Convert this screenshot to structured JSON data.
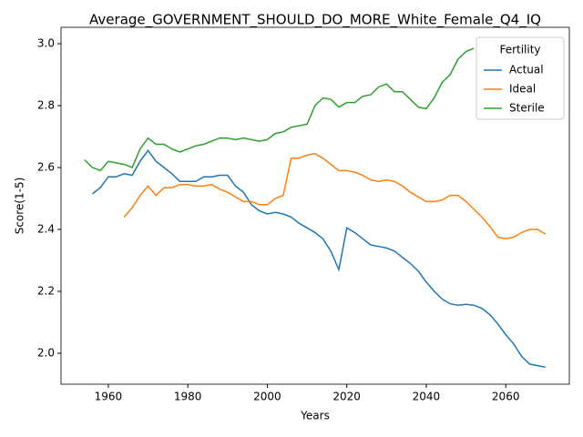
{
  "chart_data": {
    "type": "line",
    "title": "Average_GOVERNMENT_SHOULD_DO_MORE_White_Female_Q4_IQ",
    "xlabel": "Years",
    "ylabel": "Score(1-5)",
    "legend_title": "Fertility",
    "legend": "upper right",
    "x": [
      1954,
      1956,
      1958,
      1960,
      1962,
      1964,
      1966,
      1968,
      1970,
      1972,
      1974,
      1976,
      1978,
      1980,
      1982,
      1984,
      1986,
      1988,
      1990,
      1992,
      1994,
      1996,
      1998,
      2000,
      2002,
      2004,
      2006,
      2008,
      2010,
      2012,
      2014,
      2016,
      2018,
      2020,
      2022,
      2024,
      2026,
      2028,
      2030,
      2032,
      2034,
      2036,
      2038,
      2040,
      2042,
      2044,
      2046,
      2048,
      2050,
      2052,
      2054,
      2056,
      2058,
      2060,
      2062,
      2064,
      2066,
      2068,
      2070
    ],
    "series": [
      {
        "name": "Actual",
        "color": "#1f77b4",
        "values": [
          null,
          2.515,
          2.535,
          2.57,
          2.57,
          2.58,
          2.575,
          2.62,
          2.655,
          2.62,
          2.6,
          2.58,
          2.555,
          2.555,
          2.555,
          2.57,
          2.57,
          2.575,
          2.575,
          2.54,
          2.52,
          2.48,
          2.46,
          2.45,
          2.455,
          2.45,
          2.44,
          2.42,
          2.405,
          2.39,
          2.37,
          2.33,
          2.27,
          2.405,
          2.39,
          2.37,
          2.35,
          2.345,
          2.34,
          2.33,
          2.31,
          2.29,
          2.265,
          2.23,
          2.2,
          2.175,
          2.16,
          2.155,
          2.158,
          2.155,
          2.145,
          2.125,
          2.095,
          2.06,
          2.03,
          1.99,
          1.965,
          1.96,
          1.955
        ]
      },
      {
        "name": "Ideal",
        "color": "#ff7f0e",
        "values": [
          null,
          null,
          null,
          null,
          null,
          2.44,
          2.47,
          2.51,
          2.54,
          2.51,
          2.535,
          2.535,
          2.545,
          2.545,
          2.54,
          2.54,
          2.545,
          2.53,
          2.52,
          2.505,
          2.49,
          2.49,
          2.48,
          2.48,
          2.5,
          2.51,
          2.63,
          2.63,
          2.64,
          2.645,
          2.63,
          2.61,
          2.59,
          2.59,
          2.585,
          2.575,
          2.56,
          2.555,
          2.56,
          2.555,
          2.54,
          2.52,
          2.505,
          2.49,
          2.49,
          2.495,
          2.51,
          2.51,
          2.49,
          2.465,
          2.44,
          2.41,
          2.375,
          2.37,
          2.375,
          2.39,
          2.4,
          2.4,
          2.385
        ]
      },
      {
        "name": "Sterile",
        "color": "#2ca02c",
        "values": [
          2.625,
          2.6,
          2.59,
          2.62,
          2.615,
          2.61,
          2.6,
          2.66,
          2.695,
          2.675,
          2.675,
          2.66,
          2.65,
          2.66,
          2.67,
          2.675,
          2.685,
          2.695,
          2.695,
          2.69,
          2.695,
          2.69,
          2.685,
          2.69,
          2.71,
          2.715,
          2.73,
          2.735,
          2.74,
          2.8,
          2.825,
          2.82,
          2.795,
          2.81,
          2.81,
          2.83,
          2.835,
          2.86,
          2.87,
          2.845,
          2.845,
          2.82,
          2.795,
          2.79,
          2.825,
          2.875,
          2.9,
          2.95,
          2.975,
          2.985,
          null,
          null,
          null,
          null,
          null,
          null,
          null,
          null,
          null
        ]
      }
    ],
    "xlim": [
      1948.1,
      2076
    ],
    "ylim": [
      1.9,
      3.053
    ],
    "xticks": [
      1960,
      1980,
      2000,
      2020,
      2040,
      2060
    ],
    "yticks": [
      {
        "value": 2.0,
        "label": "2.0"
      },
      2.2,
      2.4,
      2.6,
      2.8,
      {
        "value": 3.0,
        "label": "3.0"
      }
    ],
    "grid": false
  }
}
